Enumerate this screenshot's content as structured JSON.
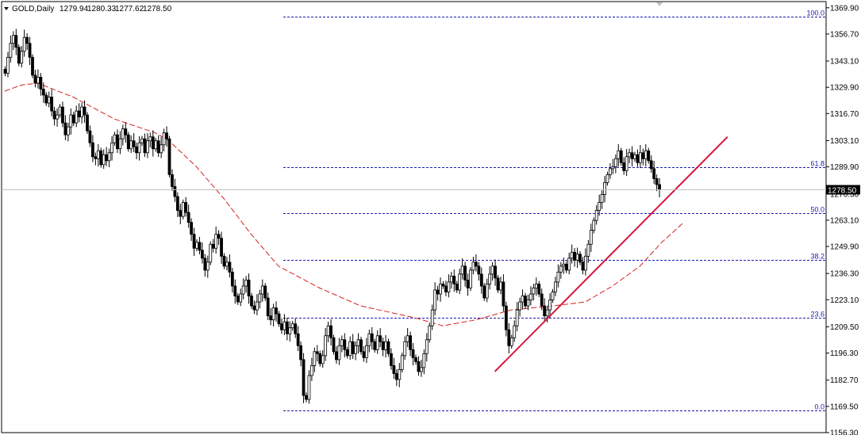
{
  "header": {
    "symbol": "GOLD,Daily",
    "open": "1279.94",
    "high": "1280.33",
    "low": "1277.62",
    "close": "1278.50"
  },
  "colors": {
    "background": "#ffffff",
    "candle": "#000000",
    "ma_line": "#d62020",
    "trendline": "#d6163c",
    "fib_line": "#1a1ab0",
    "current_price_line": "#c0c0c0",
    "price_label_bg": "#000000"
  },
  "chart_data": {
    "type": "candlestick",
    "symbol": "GOLD",
    "timeframe": "Daily",
    "y_ticks": [
      "1369.90",
      "1356.70",
      "1343.10",
      "1329.90",
      "1316.70",
      "1303.10",
      "1289.90",
      "1276.30",
      "1263.10",
      "1249.90",
      "1236.30",
      "1223.10",
      "1209.50",
      "1196.30",
      "1182.70",
      "1169.50",
      "1156.30"
    ],
    "ylim": [
      1156.3,
      1373.0
    ],
    "current_price": "1278.50",
    "fibonacci": {
      "high": 1365.5,
      "low": 1167.5,
      "levels": [
        {
          "label": "100.0",
          "value": 1365.5
        },
        {
          "label": "61.8",
          "value": 1289.9
        },
        {
          "label": "50.0",
          "value": 1266.5
        },
        {
          "label": "38.2",
          "value": 1243.1
        },
        {
          "label": "23.6",
          "value": 1214.2
        },
        {
          "label": "0.0",
          "value": 1167.5
        }
      ]
    },
    "closes": [
      1337,
      1345,
      1352,
      1356,
      1350,
      1342,
      1348,
      1355,
      1352,
      1345,
      1336,
      1332,
      1335,
      1329,
      1326,
      1322,
      1325,
      1318,
      1314,
      1316,
      1320,
      1312,
      1306,
      1310,
      1316,
      1312,
      1318,
      1315,
      1320,
      1316,
      1308,
      1302,
      1295,
      1294,
      1298,
      1291,
      1296,
      1293,
      1297,
      1302,
      1306,
      1299,
      1304,
      1309,
      1306,
      1299,
      1303,
      1300,
      1297,
      1302,
      1304,
      1297,
      1303,
      1305,
      1299,
      1303,
      1297,
      1301,
      1307,
      1304,
      1286,
      1280,
      1275,
      1268,
      1265,
      1272,
      1267,
      1262,
      1256,
      1249,
      1252,
      1248,
      1244,
      1238,
      1242,
      1251,
      1249,
      1256,
      1254,
      1245,
      1240,
      1242,
      1237,
      1230,
      1225,
      1222,
      1226,
      1230,
      1233,
      1225,
      1220,
      1218,
      1222,
      1226,
      1230,
      1224,
      1215,
      1213,
      1219,
      1216,
      1211,
      1208,
      1212,
      1206,
      1209,
      1211,
      1206,
      1200,
      1193,
      1175,
      1173,
      1185,
      1190,
      1197,
      1196,
      1191,
      1195,
      1205,
      1210,
      1204,
      1197,
      1193,
      1200,
      1203,
      1198,
      1195,
      1202,
      1196,
      1200,
      1203,
      1197,
      1194,
      1200,
      1206,
      1202,
      1198,
      1205,
      1202,
      1198,
      1202,
      1196,
      1190,
      1186,
      1183,
      1188,
      1195,
      1202,
      1205,
      1198,
      1194,
      1192,
      1187,
      1189,
      1196,
      1203,
      1210,
      1218,
      1228,
      1226,
      1231,
      1230,
      1227,
      1232,
      1235,
      1231,
      1228,
      1236,
      1240,
      1233,
      1229,
      1238,
      1242,
      1240,
      1236,
      1230,
      1224,
      1231,
      1236,
      1240,
      1234,
      1228,
      1232,
      1220,
      1208,
      1200,
      1204,
      1210,
      1218,
      1222,
      1225,
      1220,
      1223,
      1226,
      1229,
      1231,
      1226,
      1220,
      1215,
      1218,
      1223,
      1227,
      1232,
      1237,
      1240,
      1241,
      1238,
      1244,
      1247,
      1243,
      1246,
      1242,
      1238,
      1245,
      1251,
      1258,
      1263,
      1268,
      1272,
      1276,
      1282,
      1286,
      1289,
      1290,
      1294,
      1298,
      1292,
      1288,
      1295,
      1297,
      1294,
      1296,
      1292,
      1297,
      1294,
      1298,
      1293,
      1289,
      1284,
      1281,
      1278.5
    ],
    "moving_average": [
      {
        "bar": 0,
        "value": 1328
      },
      {
        "bar": 6,
        "value": 1331
      },
      {
        "bar": 12,
        "value": 1332
      },
      {
        "bar": 25,
        "value": 1325
      },
      {
        "bar": 40,
        "value": 1314
      },
      {
        "bar": 55,
        "value": 1307
      },
      {
        "bar": 60,
        "value": 1303
      },
      {
        "bar": 70,
        "value": 1290
      },
      {
        "bar": 80,
        "value": 1274
      },
      {
        "bar": 90,
        "value": 1256
      },
      {
        "bar": 100,
        "value": 1240
      },
      {
        "bar": 115,
        "value": 1229
      },
      {
        "bar": 130,
        "value": 1220
      },
      {
        "bar": 150,
        "value": 1214
      },
      {
        "bar": 160,
        "value": 1210
      },
      {
        "bar": 172,
        "value": 1213
      },
      {
        "bar": 185,
        "value": 1218
      },
      {
        "bar": 200,
        "value": 1220
      },
      {
        "bar": 212,
        "value": 1222
      },
      {
        "bar": 222,
        "value": 1230
      },
      {
        "bar": 232,
        "value": 1240
      },
      {
        "bar": 240,
        "value": 1252
      },
      {
        "bar": 248,
        "value": 1262
      }
    ],
    "trendline": {
      "bar_start": 179,
      "price_start": 1187,
      "bar_end": 264,
      "price_end": 1305
    }
  }
}
